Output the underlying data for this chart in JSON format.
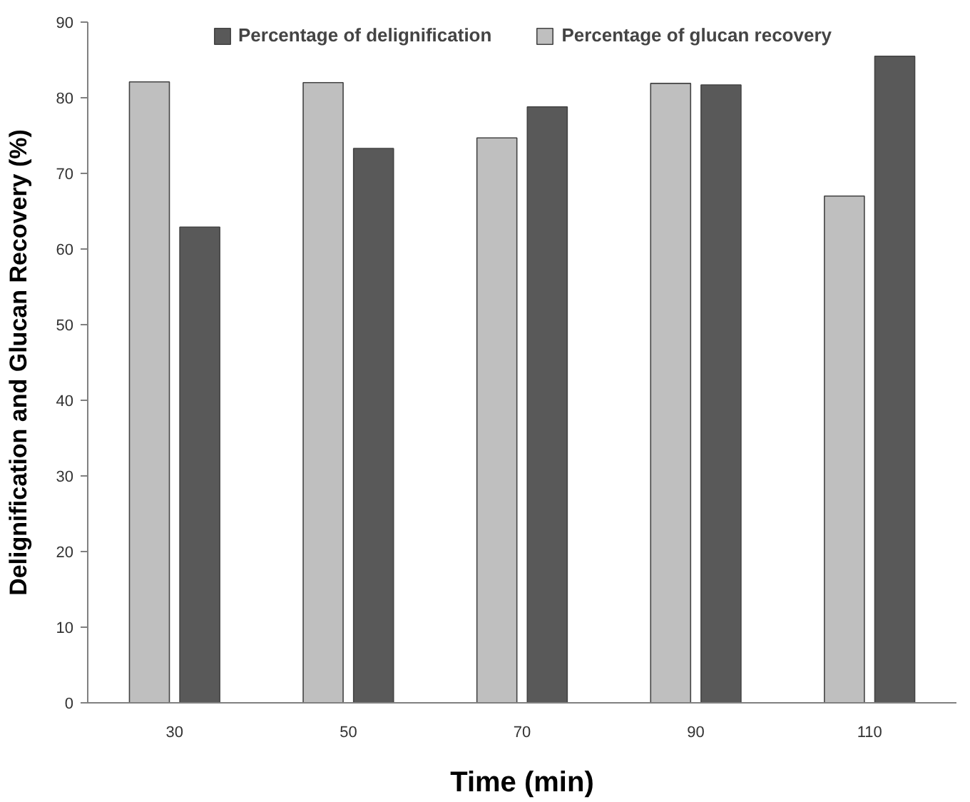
{
  "chart_data": {
    "type": "bar",
    "xlabel": "Time (min)",
    "ylabel": "Delignification and Glucan Recovery (%)",
    "categories": [
      "30",
      "50",
      "70",
      "90",
      "110"
    ],
    "series": [
      {
        "name": "Percentage of glucan recovery",
        "color": "#bfbfbf",
        "values": [
          82.1,
          82.0,
          74.7,
          81.9,
          67.0
        ]
      },
      {
        "name": "Percentage of delignification",
        "color": "#595959",
        "values": [
          62.9,
          73.3,
          78.8,
          81.7,
          85.5
        ]
      }
    ],
    "ylim": [
      0,
      90
    ],
    "yticks": [
      0,
      10,
      20,
      30,
      40,
      50,
      60,
      70,
      80,
      90
    ],
    "grid": false,
    "legend": "top"
  }
}
